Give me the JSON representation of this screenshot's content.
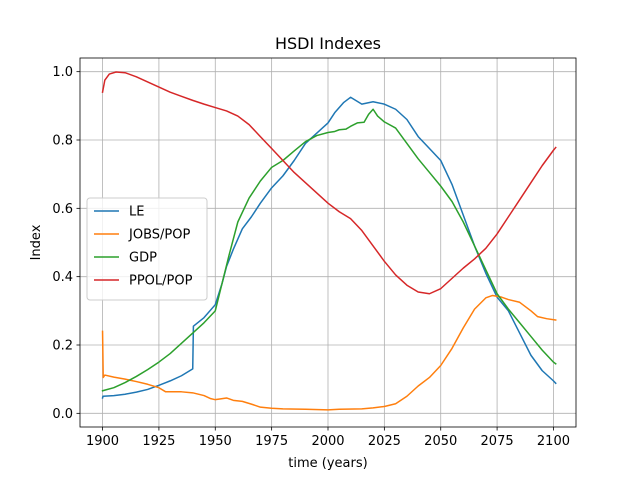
{
  "chart_data": {
    "type": "line",
    "title": "HSDI Indexes",
    "xlabel": "time (years)",
    "ylabel": "Index",
    "xlim": [
      1890,
      2110
    ],
    "ylim": [
      -0.04,
      1.04
    ],
    "xticks": [
      "1900",
      "1925",
      "1950",
      "1975",
      "2000",
      "2025",
      "2050",
      "2075",
      "2100"
    ],
    "yticks": [
      "0.0",
      "0.2",
      "0.4",
      "0.6",
      "0.8",
      "1.0"
    ],
    "grid": true,
    "legend_position": "center-left",
    "series": [
      {
        "name": "LE",
        "color": "#1f77b4",
        "points": [
          [
            1900,
            0.045
          ],
          [
            1900.2,
            0.05
          ],
          [
            1905,
            0.052
          ],
          [
            1910,
            0.056
          ],
          [
            1915,
            0.062
          ],
          [
            1920,
            0.07
          ],
          [
            1925,
            0.082
          ],
          [
            1930,
            0.095
          ],
          [
            1935,
            0.11
          ],
          [
            1940,
            0.13
          ],
          [
            1940.3,
            0.255
          ],
          [
            1945,
            0.28
          ],
          [
            1950,
            0.318
          ],
          [
            1953,
            0.38
          ],
          [
            1955,
            0.43
          ],
          [
            1958,
            0.48
          ],
          [
            1962,
            0.54
          ],
          [
            1966,
            0.575
          ],
          [
            1970,
            0.615
          ],
          [
            1975,
            0.66
          ],
          [
            1980,
            0.695
          ],
          [
            1985,
            0.74
          ],
          [
            1990,
            0.79
          ],
          [
            1995,
            0.82
          ],
          [
            2000,
            0.85
          ],
          [
            2003,
            0.88
          ],
          [
            2007,
            0.91
          ],
          [
            2010,
            0.925
          ],
          [
            2015,
            0.905
          ],
          [
            2020,
            0.912
          ],
          [
            2025,
            0.905
          ],
          [
            2030,
            0.89
          ],
          [
            2035,
            0.86
          ],
          [
            2040,
            0.81
          ],
          [
            2045,
            0.775
          ],
          [
            2050,
            0.74
          ],
          [
            2055,
            0.67
          ],
          [
            2060,
            0.58
          ],
          [
            2065,
            0.49
          ],
          [
            2070,
            0.41
          ],
          [
            2075,
            0.34
          ],
          [
            2080,
            0.3
          ],
          [
            2085,
            0.235
          ],
          [
            2090,
            0.17
          ],
          [
            2095,
            0.125
          ],
          [
            2100,
            0.095
          ],
          [
            2101,
            0.088
          ]
        ]
      },
      {
        "name": "JOBS/POP",
        "color": "#ff7f0e",
        "points": [
          [
            1900,
            0.24
          ],
          [
            1900.3,
            0.105
          ],
          [
            1901,
            0.112
          ],
          [
            1905,
            0.106
          ],
          [
            1910,
            0.1
          ],
          [
            1915,
            0.093
          ],
          [
            1920,
            0.085
          ],
          [
            1925,
            0.075
          ],
          [
            1928,
            0.063
          ],
          [
            1935,
            0.063
          ],
          [
            1940,
            0.06
          ],
          [
            1945,
            0.052
          ],
          [
            1948,
            0.043
          ],
          [
            1950,
            0.04
          ],
          [
            1952,
            0.042
          ],
          [
            1955,
            0.045
          ],
          [
            1958,
            0.038
          ],
          [
            1962,
            0.035
          ],
          [
            1966,
            0.027
          ],
          [
            1970,
            0.018
          ],
          [
            1975,
            0.015
          ],
          [
            1980,
            0.013
          ],
          [
            1990,
            0.012
          ],
          [
            2000,
            0.01
          ],
          [
            2005,
            0.012
          ],
          [
            2015,
            0.013
          ],
          [
            2020,
            0.016
          ],
          [
            2025,
            0.02
          ],
          [
            2030,
            0.028
          ],
          [
            2035,
            0.05
          ],
          [
            2040,
            0.08
          ],
          [
            2045,
            0.105
          ],
          [
            2050,
            0.14
          ],
          [
            2055,
            0.19
          ],
          [
            2060,
            0.25
          ],
          [
            2065,
            0.305
          ],
          [
            2070,
            0.338
          ],
          [
            2073,
            0.345
          ],
          [
            2077,
            0.34
          ],
          [
            2080,
            0.333
          ],
          [
            2085,
            0.325
          ],
          [
            2090,
            0.3
          ],
          [
            2093,
            0.283
          ],
          [
            2097,
            0.277
          ],
          [
            2101,
            0.273
          ]
        ]
      },
      {
        "name": "GDP",
        "color": "#2ca02c",
        "points": [
          [
            1900,
            0.066
          ],
          [
            1905,
            0.075
          ],
          [
            1910,
            0.09
          ],
          [
            1915,
            0.108
          ],
          [
            1920,
            0.128
          ],
          [
            1925,
            0.15
          ],
          [
            1930,
            0.175
          ],
          [
            1935,
            0.205
          ],
          [
            1940,
            0.235
          ],
          [
            1945,
            0.265
          ],
          [
            1950,
            0.3
          ],
          [
            1953,
            0.38
          ],
          [
            1956,
            0.46
          ],
          [
            1960,
            0.56
          ],
          [
            1965,
            0.63
          ],
          [
            1970,
            0.68
          ],
          [
            1975,
            0.72
          ],
          [
            1980,
            0.74
          ],
          [
            1985,
            0.768
          ],
          [
            1990,
            0.795
          ],
          [
            1995,
            0.813
          ],
          [
            2000,
            0.822
          ],
          [
            2003,
            0.825
          ],
          [
            2005,
            0.83
          ],
          [
            2008,
            0.832
          ],
          [
            2010,
            0.84
          ],
          [
            2013,
            0.85
          ],
          [
            2016,
            0.852
          ],
          [
            2018,
            0.875
          ],
          [
            2020,
            0.89
          ],
          [
            2022,
            0.87
          ],
          [
            2025,
            0.853
          ],
          [
            2030,
            0.835
          ],
          [
            2035,
            0.79
          ],
          [
            2040,
            0.745
          ],
          [
            2045,
            0.705
          ],
          [
            2050,
            0.665
          ],
          [
            2055,
            0.62
          ],
          [
            2060,
            0.56
          ],
          [
            2065,
            0.49
          ],
          [
            2070,
            0.42
          ],
          [
            2075,
            0.35
          ],
          [
            2080,
            0.305
          ],
          [
            2085,
            0.265
          ],
          [
            2090,
            0.225
          ],
          [
            2095,
            0.185
          ],
          [
            2100,
            0.15
          ],
          [
            2101,
            0.145
          ]
        ]
      },
      {
        "name": "PPOL/POP",
        "color": "#d62728",
        "points": [
          [
            1900,
            0.94
          ],
          [
            1901,
            0.975
          ],
          [
            1903,
            0.993
          ],
          [
            1906,
            0.999
          ],
          [
            1910,
            0.997
          ],
          [
            1915,
            0.985
          ],
          [
            1920,
            0.97
          ],
          [
            1925,
            0.955
          ],
          [
            1930,
            0.94
          ],
          [
            1935,
            0.928
          ],
          [
            1940,
            0.916
          ],
          [
            1945,
            0.905
          ],
          [
            1950,
            0.895
          ],
          [
            1955,
            0.885
          ],
          [
            1960,
            0.87
          ],
          [
            1965,
            0.845
          ],
          [
            1970,
            0.81
          ],
          [
            1975,
            0.775
          ],
          [
            1980,
            0.74
          ],
          [
            1985,
            0.705
          ],
          [
            1990,
            0.675
          ],
          [
            1995,
            0.645
          ],
          [
            2000,
            0.615
          ],
          [
            2005,
            0.59
          ],
          [
            2010,
            0.57
          ],
          [
            2015,
            0.535
          ],
          [
            2020,
            0.49
          ],
          [
            2025,
            0.445
          ],
          [
            2030,
            0.405
          ],
          [
            2035,
            0.375
          ],
          [
            2040,
            0.355
          ],
          [
            2045,
            0.35
          ],
          [
            2050,
            0.365
          ],
          [
            2055,
            0.395
          ],
          [
            2060,
            0.425
          ],
          [
            2065,
            0.452
          ],
          [
            2070,
            0.483
          ],
          [
            2075,
            0.525
          ],
          [
            2080,
            0.575
          ],
          [
            2085,
            0.625
          ],
          [
            2090,
            0.675
          ],
          [
            2095,
            0.725
          ],
          [
            2100,
            0.77
          ],
          [
            2101,
            0.778
          ]
        ]
      }
    ]
  }
}
